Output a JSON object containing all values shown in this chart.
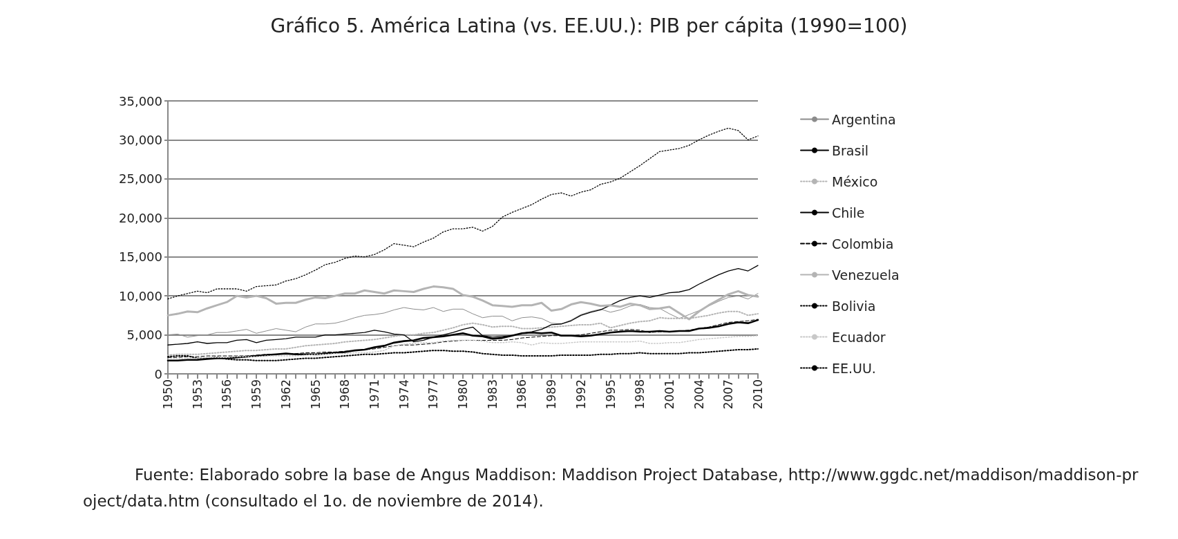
{
  "chart_data": {
    "type": "line",
    "title": "Gráfico 5. América Latina (vs. EE.UU.): PIB per cápita (1990=100)",
    "categories": [
      "1950",
      null,
      null,
      "1953",
      null,
      null,
      "1956",
      null,
      null,
      "1959",
      null,
      null,
      "1962",
      null,
      null,
      "1965",
      null,
      null,
      "1968",
      null,
      null,
      "1971",
      null,
      null,
      "1974",
      null,
      null,
      "1977",
      null,
      null,
      "1980",
      null,
      null,
      "1983",
      null,
      null,
      "1986",
      null,
      null,
      "1989",
      null,
      null,
      "1992",
      null,
      null,
      "1995",
      null,
      null,
      "1998",
      null,
      null,
      "2001",
      null,
      null,
      "2004",
      null,
      null,
      "2007",
      null,
      null,
      "2010"
    ],
    "ylim": [
      0,
      35000
    ],
    "yticks": [
      {
        "value": 0,
        "label": "0"
      },
      {
        "value": 5000,
        "label": "5,000"
      },
      {
        "value": 10000,
        "label": "10,000"
      },
      {
        "value": 15000,
        "label": "15,000"
      },
      {
        "value": 20000,
        "label": "20,000"
      },
      {
        "value": 25000,
        "label": "25,000"
      },
      {
        "value": 30000,
        "label": "30,000"
      },
      {
        "value": 35000,
        "label": "35,000"
      }
    ],
    "grid": "y",
    "legend": "right",
    "marker": "none",
    "series": [
      {
        "name": "Argentina",
        "color": "#8c8c8c",
        "line_style": "solid",
        "values": [
          5000,
          5100,
          4700,
          4900,
          5000,
          5300,
          5300,
          5500,
          5700,
          5200,
          5500,
          5800,
          5600,
          5400,
          6000,
          6400,
          6400,
          6500,
          6800,
          7200,
          7500,
          7600,
          7800,
          8200,
          8500,
          8300,
          8200,
          8500,
          8000,
          8300,
          8300,
          7700,
          7200,
          7400,
          7400,
          6800,
          7200,
          7300,
          7100,
          6500,
          6400,
          6900,
          7600,
          8000,
          8300,
          7900,
          8200,
          8700,
          8900,
          8500,
          8400,
          7700,
          7100,
          7600,
          8100,
          8700,
          9300,
          9800,
          10000,
          9600,
          10300
        ]
      },
      {
        "name": "Brasil",
        "color": "#000000",
        "line_style": "solid",
        "values": [
          1700,
          1700,
          1800,
          1800,
          1900,
          2000,
          2000,
          2100,
          2200,
          2300,
          2400,
          2500,
          2600,
          2500,
          2500,
          2500,
          2600,
          2700,
          2800,
          3000,
          3100,
          3400,
          3600,
          4000,
          4200,
          4300,
          4600,
          4700,
          4800,
          5000,
          5200,
          4900,
          4800,
          4500,
          4600,
          4900,
          5200,
          5300,
          5200,
          5300,
          4900,
          4900,
          4800,
          4900,
          5100,
          5300,
          5400,
          5500,
          5400,
          5400,
          5500,
          5400,
          5500,
          5500,
          5800,
          5900,
          6100,
          6400,
          6600,
          6500,
          6900
        ]
      },
      {
        "name": "México",
        "color": "#b4b4b4",
        "line_style": "dotted",
        "values": [
          2400,
          2500,
          2500,
          2500,
          2600,
          2700,
          2800,
          2900,
          3000,
          3000,
          3100,
          3200,
          3200,
          3400,
          3600,
          3700,
          3800,
          3900,
          4100,
          4200,
          4300,
          4400,
          4600,
          4800,
          5000,
          5000,
          5200,
          5300,
          5600,
          5900,
          6300,
          6500,
          6300,
          6000,
          6100,
          6100,
          5800,
          5800,
          5900,
          6000,
          6100,
          6200,
          6300,
          6300,
          6500,
          5900,
          6200,
          6500,
          6700,
          6800,
          7200,
          7100,
          7100,
          7100,
          7300,
          7500,
          7800,
          8000,
          8000,
          7500,
          7700
        ]
      },
      {
        "name": "Chile",
        "color": "#000000",
        "line_style": "solid",
        "values": [
          3700,
          3800,
          3900,
          4100,
          3900,
          4000,
          4000,
          4300,
          4400,
          4000,
          4300,
          4400,
          4500,
          4700,
          4700,
          4700,
          5000,
          5000,
          5100,
          5200,
          5300,
          5600,
          5400,
          5100,
          5000,
          4100,
          4300,
          4700,
          5000,
          5300,
          5700,
          6000,
          4900,
          4700,
          4800,
          4900,
          5200,
          5400,
          5700,
          6300,
          6400,
          6800,
          7500,
          7900,
          8200,
          8800,
          9400,
          9800,
          10000,
          9800,
          10100,
          10400,
          10500,
          10800,
          11500,
          12100,
          12700,
          13200,
          13500,
          13200,
          13900
        ]
      },
      {
        "name": "Colombia",
        "color": "#000000",
        "line_style": "dashed",
        "values": [
          2100,
          2100,
          2200,
          2200,
          2300,
          2300,
          2300,
          2300,
          2300,
          2400,
          2500,
          2500,
          2600,
          2600,
          2700,
          2700,
          2800,
          2800,
          2900,
          3000,
          3100,
          3200,
          3400,
          3600,
          3700,
          3700,
          3800,
          3900,
          4100,
          4200,
          4300,
          4300,
          4300,
          4300,
          4300,
          4400,
          4600,
          4700,
          4800,
          4900,
          4900,
          4900,
          5000,
          5200,
          5400,
          5600,
          5600,
          5700,
          5600,
          5300,
          5400,
          5400,
          5500,
          5600,
          5800,
          6000,
          6300,
          6600,
          6700,
          6800,
          7000
        ]
      },
      {
        "name": "Venezuela",
        "color": "#b4b4b4",
        "line_style": "solid",
        "values": [
          7500,
          7700,
          8000,
          7900,
          8400,
          8800,
          9200,
          10000,
          9800,
          10000,
          9700,
          9000,
          9100,
          9100,
          9500,
          9800,
          9700,
          10000,
          10300,
          10300,
          10700,
          10500,
          10300,
          10700,
          10600,
          10500,
          10900,
          11200,
          11100,
          10900,
          10100,
          9900,
          9400,
          8800,
          8700,
          8600,
          8800,
          8800,
          9100,
          8100,
          8300,
          8900,
          9200,
          9000,
          8700,
          8800,
          8600,
          9000,
          8800,
          8300,
          8400,
          8600,
          7800,
          7000,
          8000,
          8800,
          9500,
          10200,
          10600,
          10100,
          9900
        ]
      },
      {
        "name": "Bolivia",
        "color": "#000000",
        "line_style": "dotted",
        "values": [
          2200,
          2300,
          2300,
          2000,
          2000,
          2100,
          1900,
          1800,
          1800,
          1700,
          1700,
          1700,
          1800,
          1900,
          2000,
          2000,
          2100,
          2200,
          2300,
          2400,
          2500,
          2500,
          2600,
          2700,
          2700,
          2800,
          2900,
          3000,
          3000,
          2900,
          2900,
          2800,
          2600,
          2500,
          2400,
          2400,
          2300,
          2300,
          2300,
          2300,
          2400,
          2400,
          2400,
          2400,
          2500,
          2500,
          2600,
          2600,
          2700,
          2600,
          2600,
          2600,
          2600,
          2700,
          2700,
          2800,
          2900,
          3000,
          3100,
          3100,
          3200
        ]
      },
      {
        "name": "Ecuador",
        "color": "#c8c8c8",
        "line_style": "dotted",
        "values": [
          1900,
          1900,
          2000,
          2000,
          2100,
          2100,
          2100,
          2200,
          2200,
          2200,
          2300,
          2300,
          2300,
          2300,
          2400,
          2500,
          2500,
          2600,
          2600,
          2700,
          2700,
          2800,
          3000,
          3600,
          3800,
          3900,
          4000,
          4000,
          4200,
          4300,
          4300,
          4300,
          4200,
          4000,
          4000,
          4100,
          4000,
          3700,
          4000,
          3900,
          3900,
          4000,
          4100,
          4100,
          4100,
          4100,
          4100,
          4100,
          4200,
          3900,
          3900,
          4000,
          4000,
          4200,
          4400,
          4500,
          4600,
          4700,
          4800,
          4800,
          4900
        ]
      },
      {
        "name": "EE.UU.",
        "color": "#000000",
        "line_style": "dotted",
        "values": [
          9600,
          10000,
          10300,
          10600,
          10400,
          10900,
          10900,
          10900,
          10600,
          11200,
          11300,
          11400,
          11900,
          12200,
          12700,
          13300,
          14000,
          14300,
          14800,
          15100,
          15000,
          15300,
          15900,
          16700,
          16500,
          16300,
          16900,
          17400,
          18200,
          18600,
          18600,
          18800,
          18300,
          18900,
          20100,
          20700,
          21200,
          21700,
          22400,
          23000,
          23200,
          22800,
          23300,
          23600,
          24300,
          24600,
          25100,
          25900,
          26700,
          27600,
          28500,
          28700,
          28900,
          29300,
          30000,
          30600,
          31100,
          31500,
          31200,
          30000,
          30500
        ]
      }
    ],
    "annotations": [
      "Fuente: Elaborado sobre la base de Angus Maddison: Maddison Project Database, http://www.ggdc.net/maddison/maddison-project/data.htm (consultado el 1o. de noviembre de 2014)."
    ]
  }
}
